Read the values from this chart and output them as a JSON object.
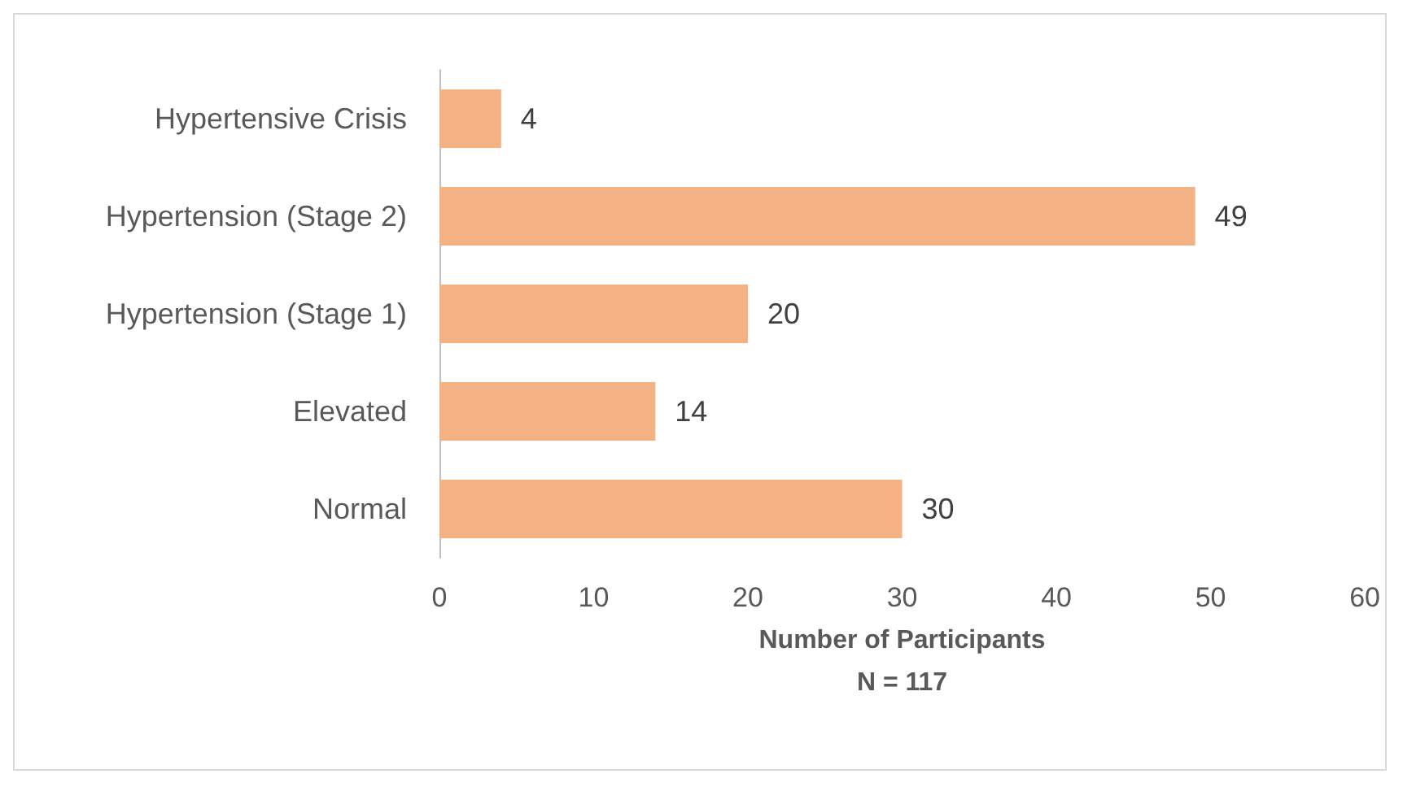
{
  "chart_data": {
    "type": "bar",
    "orientation": "horizontal",
    "categories": [
      "Hypertensive Crisis",
      "Hypertension (Stage 2)",
      "Hypertension (Stage 1)",
      "Elevated",
      "Normal"
    ],
    "values": [
      4,
      49,
      20,
      14,
      30
    ],
    "color": "#f4b183",
    "xlabel": "Number of Participants\nN = 117",
    "xlim": [
      0,
      60
    ],
    "xticks": [
      0,
      10,
      20,
      30,
      40,
      50,
      60
    ],
    "data_labels": true,
    "grid": false
  }
}
